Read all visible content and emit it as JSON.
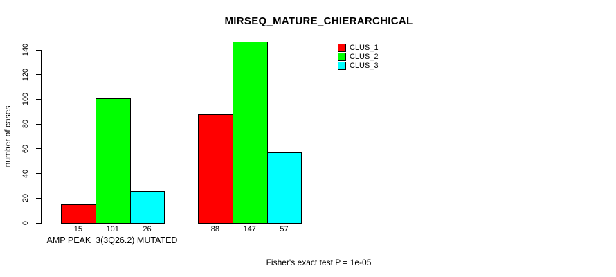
{
  "figure": {
    "background": "#FFFFFF",
    "text_color": "#000000",
    "axis_color": "#000000"
  },
  "chart_data": {
    "type": "bar",
    "title": "MIRSEQ_MATURE_CHIERARCHICAL",
    "ylabel": "number of cases",
    "footnote": "Fisher's exact test P = 1e-05",
    "categories": [
      "AMP PEAK  3(3Q26.2) MUTATED",
      ""
    ],
    "series": [
      {
        "name": "CLUS_1",
        "color": "#FF0000",
        "values": [
          15,
          88
        ]
      },
      {
        "name": "CLUS_2",
        "color": "#00FF00",
        "values": [
          101,
          147
        ]
      },
      {
        "name": "CLUS_3",
        "color": "#00FFFF",
        "values": [
          26,
          57
        ]
      }
    ],
    "yticks": [
      0,
      20,
      40,
      60,
      80,
      100,
      120,
      140
    ],
    "ylim": [
      0,
      147
    ],
    "grid": false,
    "legend_position": "top-right",
    "value_labels_shown": true,
    "bar_border_color": "#000000"
  }
}
